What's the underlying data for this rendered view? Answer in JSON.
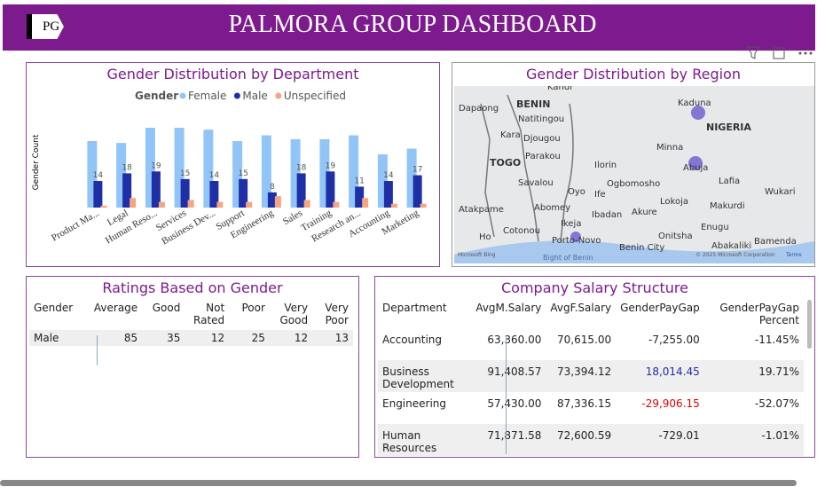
{
  "header": {
    "logo": "PG",
    "title": "PALMORA GROUP DASHBOARD"
  },
  "chart_data": {
    "type": "bar",
    "title": "Gender Distribution by Department",
    "legend_title": "Gender",
    "y_label": "Gender Count",
    "categories": [
      "Product Ma...",
      "Legal",
      "Human Reso...",
      "Services",
      "Business Dev...",
      "Support",
      "Engineering",
      "Sales",
      "Training",
      "Research an...",
      "Accounting",
      "Marketing"
    ],
    "series": [
      {
        "name": "Female",
        "color": "#92c5f7",
        "values": [
          35,
          34,
          42,
          42,
          41,
          35,
          38,
          36,
          36,
          38,
          28,
          31
        ]
      },
      {
        "name": "Male",
        "color": "#1f2fa6",
        "values": [
          14,
          18,
          19,
          15,
          14,
          15,
          8,
          18,
          19,
          11,
          14,
          17
        ],
        "data_labels": true
      },
      {
        "name": "Unspecified",
        "color": "#f4a582",
        "values": [
          1,
          5,
          3,
          4,
          3,
          3,
          6,
          4,
          3,
          5,
          2,
          2
        ]
      }
    ]
  },
  "map": {
    "title": "Gender Distribution by Region",
    "labels": [
      "Kandi",
      "BENIN",
      "Dapaong",
      "Natitingou",
      "Kara",
      "Djougou",
      "TOGO",
      "Parakou",
      "Savalou",
      "Atakpame",
      "Abomey",
      "Cotonou",
      "Porto-Novo",
      "Ikeja",
      "Oyo",
      "Ife",
      "Ilorin",
      "Ogbomosho",
      "Ibadan",
      "Akure",
      "Kaduna",
      "NIGERIA",
      "Minna",
      "Abuja",
      "Lafia",
      "Wukari",
      "Lokoja",
      "Makurdi",
      "Benin City",
      "Onitsha",
      "Enugu",
      "Abakaliki",
      "Bamenda",
      "Ho",
      "Bight of Benin"
    ],
    "attribution": "© 2025 Microsoft Corporation",
    "terms": "Terms",
    "brand": "Microsoft Bing"
  },
  "ratings": {
    "title": "Ratings Based on Gender",
    "columns": [
      "Gender",
      "Average",
      "Good",
      "Not Rated",
      "Poor",
      "Very Good",
      "Very Poor"
    ],
    "rows": [
      [
        "Male",
        "85",
        "35",
        "12",
        "25",
        "12",
        "13"
      ]
    ]
  },
  "salary": {
    "title": "Company Salary Structure",
    "columns": [
      "Department",
      "AvgM.Salary",
      "AvgF.Salary",
      "GenderPayGap",
      "GenderPayGap Percent"
    ],
    "rows": [
      [
        "Accounting",
        "63,360.00",
        "70,615.00",
        "-7,255.00",
        "-11.45%"
      ],
      [
        "Business Development",
        "91,408.57",
        "73,394.12",
        "18,014.45",
        "19.71%"
      ],
      [
        "Engineering",
        "57,430.00",
        "87,336.15",
        "-29,906.15",
        "-52.07%"
      ],
      [
        "Human Resources",
        "71,871.58",
        "72,600.59",
        "-729.01",
        "-1.01%"
      ]
    ]
  }
}
